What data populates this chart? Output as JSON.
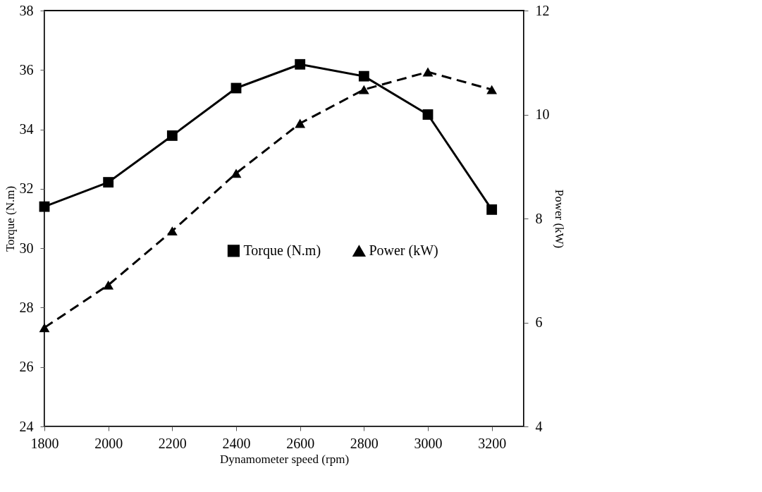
{
  "chart_data": {
    "type": "line",
    "xlabel": "Dynamometer speed (rpm)",
    "ylabel": "Torque (N.m)",
    "y2label": "Power (kW)",
    "x": [
      1800,
      2000,
      2200,
      2400,
      2600,
      2800,
      3000,
      3200
    ],
    "series": [
      {
        "name": "Torque (N.m)",
        "color": "#000000",
        "marker": "square",
        "line_style": "solid",
        "values": [
          31.4,
          32.22,
          33.79,
          35.39,
          36.19,
          35.79,
          34.5,
          31.3
        ]
      },
      {
        "name": "Power (kW)",
        "color": "#000000",
        "marker": "triangle",
        "line_style": "dashed",
        "axis": "y2",
        "values": [
          5.9,
          6.72,
          7.76,
          8.87,
          9.83,
          10.48,
          10.82,
          10.48
        ]
      }
    ],
    "xlim": [
      1800,
      3300
    ],
    "xticks": [
      1800,
      2000,
      2200,
      2400,
      2600,
      2800,
      3000,
      3200
    ],
    "ylim": [
      24,
      38
    ],
    "yticks": [
      24,
      26,
      28,
      30,
      32,
      34,
      36,
      38
    ],
    "y2lim": [
      4,
      12
    ],
    "y2ticks": [
      4,
      6,
      8,
      10,
      12
    ],
    "grid": false,
    "legend": "center"
  }
}
